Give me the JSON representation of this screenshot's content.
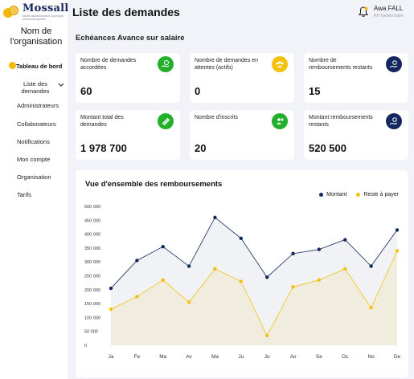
{
  "brand": {
    "name": "Mossall",
    "tagline": "Mobile salaried advance, Accessible and secure payment",
    "accent_color": "#f5b70d",
    "primary_color": "#13285e"
  },
  "sidebar": {
    "org_name": "Nom de l'organisation",
    "items": [
      {
        "label": "Tableau de bord",
        "icon": "dashboard-icon"
      },
      {
        "label": "Liste des demandes"
      },
      {
        "label": "Administrateurs"
      },
      {
        "label": "Collaborateurs"
      },
      {
        "label": "Notifications"
      },
      {
        "label": "Mon compte"
      },
      {
        "label": "Organisation"
      },
      {
        "label": "Tarifs"
      }
    ]
  },
  "header": {
    "title": "Liste des demandes",
    "user_name": "Awa FALL",
    "user_role": "RH Gestionnaire",
    "notification_icon": "bell-icon"
  },
  "section_title": "Echéances Avance sur salaire",
  "cards": [
    {
      "label": "Nombre de demandes accordées",
      "value": "60",
      "icon": "money-hand-icon",
      "color": "#22b02a"
    },
    {
      "label": "Nombre de demandes en attentes (actifs)",
      "value": "0",
      "icon": "people-icon",
      "color": "#f5c10d"
    },
    {
      "label": "Nombre de remboursements restants",
      "value": "15",
      "icon": "hand-coin-icon",
      "color": "#13285e"
    },
    {
      "label": "Montant total des demandes",
      "value": "1 978 700",
      "icon": "money-bills-icon",
      "color": "#22b02a"
    },
    {
      "label": "Nombre d'inscrits",
      "value": "20",
      "icon": "users-add-icon",
      "color": "#22b02a"
    },
    {
      "label": "Montant remboursements restants",
      "value": "520 500",
      "icon": "hand-coin-icon",
      "color": "#13285e"
    }
  ],
  "chart": {
    "title": "Vue d'ensemble des remboursements"
  },
  "chart_data": {
    "type": "area",
    "categories": [
      "Ja",
      "Fe",
      "Ma",
      "Av",
      "Ma",
      "Ju",
      "Ju",
      "Ao",
      "Se",
      "Oc",
      "No",
      "De"
    ],
    "series": [
      {
        "name": "Montant",
        "color": "#13285e",
        "values": [
          205000,
          305000,
          355000,
          285000,
          460000,
          385000,
          245000,
          330000,
          345000,
          380000,
          285000,
          415000
        ]
      },
      {
        "name": "Reste à payer",
        "color": "#f5c10d",
        "values": [
          130000,
          175000,
          235000,
          155000,
          275000,
          230000,
          35000,
          210000,
          235000,
          275000,
          135000,
          340000
        ]
      }
    ],
    "y_ticks": [
      "500 000",
      "450 000",
      "400 000",
      "350 000",
      "300 000",
      "250 000",
      "200 000",
      "150 000",
      "100 000",
      "50 000",
      "0"
    ],
    "ylim": [
      0,
      500000
    ],
    "legend_position": "top-right",
    "grid": false
  }
}
